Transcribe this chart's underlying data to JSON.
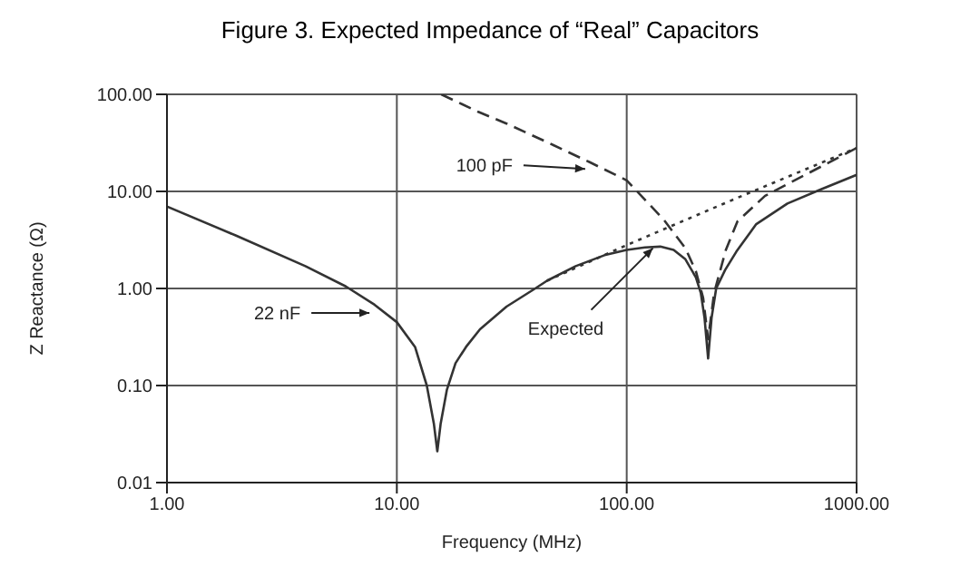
{
  "chart_data": {
    "type": "line",
    "title": "Figure 3. Expected Impedance of “Real” Capacitors",
    "xlabel": "Frequency (MHz)",
    "ylabel": "Z Reactance (Ω)",
    "log": "xy",
    "grid": true,
    "marker": "none",
    "xlim": [
      1,
      1000
    ],
    "xticks": [
      {
        "value": 1,
        "label": "1.00"
      },
      {
        "value": 10,
        "label": "10.00"
      },
      {
        "value": 100,
        "label": "100.00"
      },
      {
        "value": 1000,
        "label": "1000.00"
      }
    ],
    "ylim": [
      0.01,
      100
    ],
    "yticks": [
      {
        "value": 0.01,
        "label": "0.01"
      },
      {
        "value": 0.1,
        "label": "0.10"
      },
      {
        "value": 1,
        "label": "1.00"
      },
      {
        "value": 10,
        "label": "10.00"
      },
      {
        "value": 100,
        "label": "100.00"
      }
    ],
    "series": [
      {
        "color": "#333333",
        "line_style": "solid",
        "x": [
          1,
          2,
          4,
          6,
          8,
          10,
          12,
          13.5,
          14.5,
          15,
          15.5,
          16.5,
          18,
          20,
          23,
          30,
          40,
          45,
          60,
          80,
          100,
          120,
          140,
          160,
          180,
          200,
          210,
          218,
          226,
          234,
          245,
          268,
          300,
          366,
          500,
          700,
          1000
        ],
        "values": [
          7,
          3.5,
          1.7,
          1.05,
          0.68,
          0.45,
          0.25,
          0.1,
          0.04,
          0.021,
          0.04,
          0.09,
          0.17,
          0.25,
          0.38,
          0.65,
          1.0,
          1.2,
          1.7,
          2.2,
          2.5,
          2.65,
          2.7,
          2.5,
          2.0,
          1.3,
          0.9,
          0.5,
          0.19,
          0.5,
          1.0,
          1.55,
          2.4,
          4.6,
          7.5,
          10.5,
          14.8
        ]
      },
      {
        "color": "#333333",
        "line_style": "dashed",
        "x": [
          15.6,
          22.6,
          30,
          48,
          69,
          100,
          145,
          180,
          200,
          215,
          226,
          240,
          270,
          303,
          400,
          504,
          700,
          1000
        ],
        "values": [
          100,
          66,
          50,
          30,
          20,
          13,
          5.1,
          2.6,
          1.5,
          0.8,
          0.3,
          0.9,
          2.5,
          4.9,
          9,
          12,
          18,
          28
        ]
      },
      {
        "color": "#333333",
        "line_style": "dotted",
        "x": [
          45,
          100,
          300,
          1000
        ],
        "values": [
          1.2,
          2.8,
          8.5,
          28
        ]
      }
    ],
    "annotations": [
      {
        "text": "100 pF",
        "x": 66,
        "y": 17
      },
      {
        "text": "22 nF",
        "x": 7.6,
        "y": 0.56
      },
      {
        "text": "Expected",
        "x": 130,
        "y": 2.6
      }
    ]
  }
}
